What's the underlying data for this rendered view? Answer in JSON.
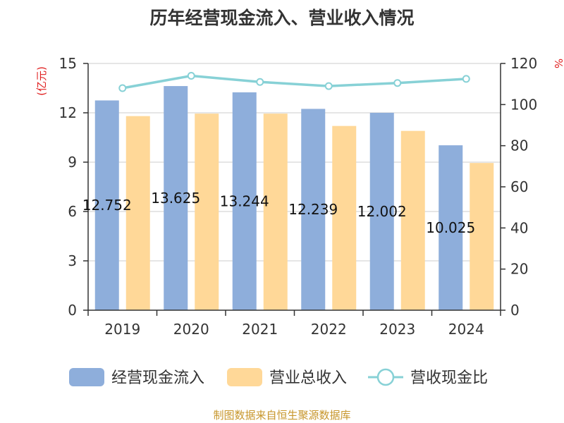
{
  "chart_data": {
    "type": "bar",
    "title": "历年经营现金流入、营业收入情况",
    "categories": [
      "2019",
      "2020",
      "2021",
      "2022",
      "2023",
      "2024"
    ],
    "y_left": {
      "unit": "(亿元)",
      "ylim": [
        0,
        15
      ],
      "ticks": [
        0,
        3,
        6,
        9,
        12,
        15
      ]
    },
    "y_right": {
      "unit": "%",
      "ylim": [
        0,
        120
      ],
      "ticks": [
        0,
        20,
        40,
        60,
        80,
        100,
        120
      ]
    },
    "series": [
      {
        "name": "经营现金流入",
        "type": "bar",
        "axis": "left",
        "color": "#8eaedb",
        "values": [
          12.752,
          13.625,
          13.244,
          12.239,
          12.002,
          10.025
        ],
        "labels": [
          "12.752",
          "13.625",
          "13.244",
          "12.239",
          "12.002",
          "10.025"
        ]
      },
      {
        "name": "营业总收入",
        "type": "bar",
        "axis": "left",
        "color": "#ffd898",
        "values": [
          11.8,
          11.95,
          11.95,
          11.2,
          10.9,
          8.95
        ]
      },
      {
        "name": "营收现金比",
        "type": "line",
        "axis": "right",
        "color": "#87d1d6",
        "values": [
          108,
          114,
          111,
          109,
          110.5,
          112.5
        ]
      }
    ],
    "grid": true,
    "legend_position": "bottom"
  },
  "source": "制图数据来自恒生聚源数据库"
}
